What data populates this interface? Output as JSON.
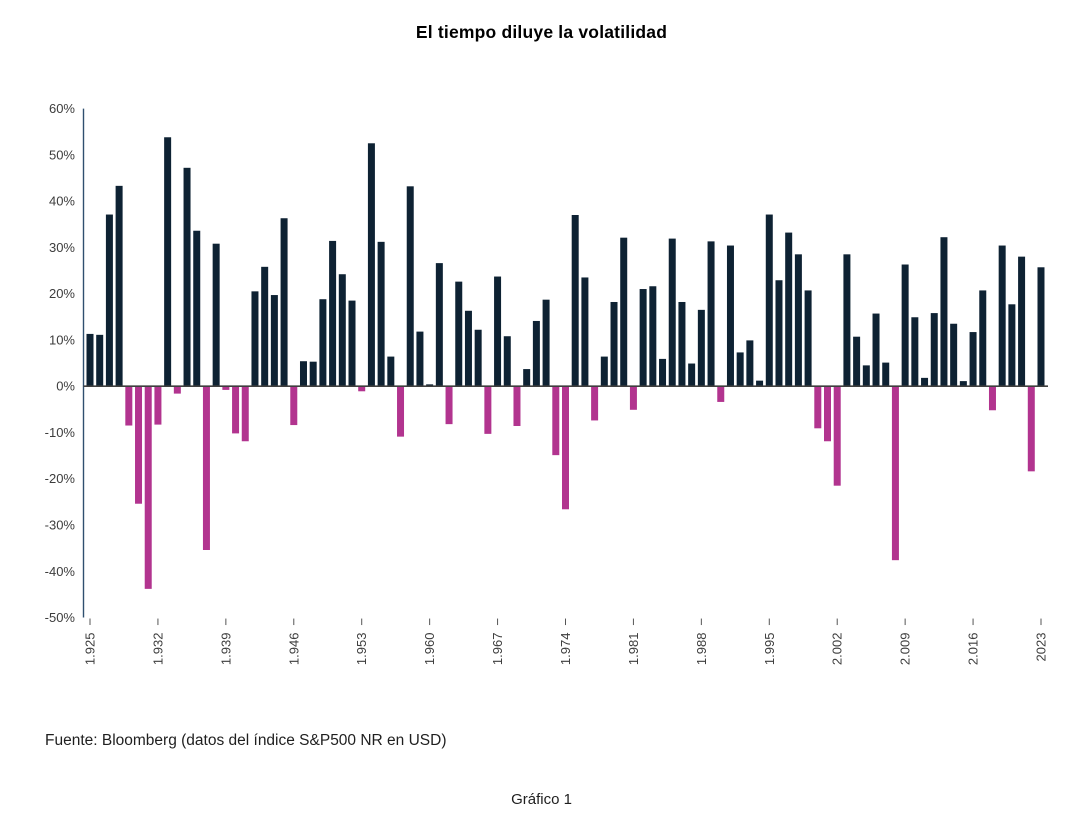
{
  "title": "El tiempo diluye la volatilidad",
  "source_note": "Fuente: Bloomberg (datos del índice S&P500 NR en USD)",
  "caption": "Gráfico 1",
  "colors": {
    "positive": "#0e2233",
    "negative": "#b2348f",
    "axis_line": "#2f4f6f",
    "zero_line": "#3f3f3f",
    "tick_mark": "#555555",
    "tick_label": "#3d3d3d"
  },
  "chart_data": {
    "type": "bar",
    "title": "El tiempo diluye la volatilidad",
    "xlabel": "",
    "ylabel": "",
    "ylim": [
      -50,
      60
    ],
    "grid": false,
    "legend": null,
    "y_ticks": [
      60,
      50,
      40,
      30,
      20,
      10,
      0,
      -10,
      -20,
      -30,
      -40,
      -50
    ],
    "y_tick_labels": [
      "60%",
      "50%",
      "40%",
      "30%",
      "20%",
      "10%",
      "0%",
      "-10%",
      "-20%",
      "-30%",
      "-40%",
      "-50%"
    ],
    "x_tick_years": [
      1925,
      1932,
      1939,
      1946,
      1953,
      1960,
      1967,
      1974,
      1981,
      1988,
      1995,
      2002,
      2009,
      2016,
      2023
    ],
    "x_tick_labels": [
      "1.925",
      "1.932",
      "1.939",
      "1.946",
      "1.953",
      "1.960",
      "1.967",
      "1.974",
      "1.981",
      "1.988",
      "1.995",
      "2.002",
      "2.009",
      "2.016",
      "2023"
    ],
    "years": [
      1925,
      1926,
      1927,
      1928,
      1929,
      1930,
      1931,
      1932,
      1933,
      1934,
      1935,
      1936,
      1937,
      1938,
      1939,
      1940,
      1941,
      1942,
      1943,
      1944,
      1945,
      1946,
      1947,
      1948,
      1949,
      1950,
      1951,
      1952,
      1953,
      1954,
      1955,
      1956,
      1957,
      1958,
      1959,
      1960,
      1961,
      1962,
      1963,
      1964,
      1965,
      1966,
      1967,
      1968,
      1969,
      1970,
      1971,
      1972,
      1973,
      1974,
      1975,
      1976,
      1977,
      1978,
      1979,
      1980,
      1981,
      1982,
      1983,
      1984,
      1985,
      1986,
      1987,
      1988,
      1989,
      1990,
      1991,
      1992,
      1993,
      1994,
      1995,
      1996,
      1997,
      1998,
      1999,
      2000,
      2001,
      2002,
      2003,
      2004,
      2005,
      2006,
      2007,
      2008,
      2009,
      2010,
      2011,
      2012,
      2013,
      2014,
      2015,
      2016,
      2017,
      2018,
      2019,
      2020,
      2021,
      2022,
      2023
    ],
    "values": [
      11.3,
      11.1,
      37.1,
      43.3,
      -8.5,
      -25.4,
      -43.8,
      -8.3,
      53.8,
      -1.6,
      47.2,
      33.6,
      -35.4,
      30.8,
      -0.8,
      -10.2,
      -11.9,
      20.5,
      25.8,
      19.7,
      36.3,
      -8.4,
      5.4,
      5.3,
      18.8,
      31.4,
      24.2,
      18.5,
      -1.1,
      52.5,
      31.2,
      6.4,
      -10.9,
      43.2,
      11.8,
      0.4,
      26.6,
      -8.2,
      22.6,
      16.3,
      12.2,
      -10.3,
      23.7,
      10.8,
      -8.6,
      3.7,
      14.1,
      18.7,
      -14.9,
      -26.6,
      37.0,
      23.5,
      -7.4,
      6.4,
      18.2,
      32.1,
      -5.1,
      21.0,
      21.6,
      5.9,
      31.9,
      18.2,
      4.9,
      16.5,
      31.3,
      -3.4,
      30.4,
      7.3,
      9.9,
      1.2,
      37.1,
      22.9,
      33.2,
      28.5,
      20.7,
      -9.1,
      -11.9,
      -21.5,
      28.5,
      10.7,
      4.5,
      15.7,
      5.1,
      -37.6,
      26.3,
      14.9,
      1.8,
      15.8,
      32.2,
      13.5,
      1.1,
      11.7,
      20.7,
      -5.2,
      30.4,
      17.7,
      28.0,
      -18.4,
      25.7
    ]
  }
}
